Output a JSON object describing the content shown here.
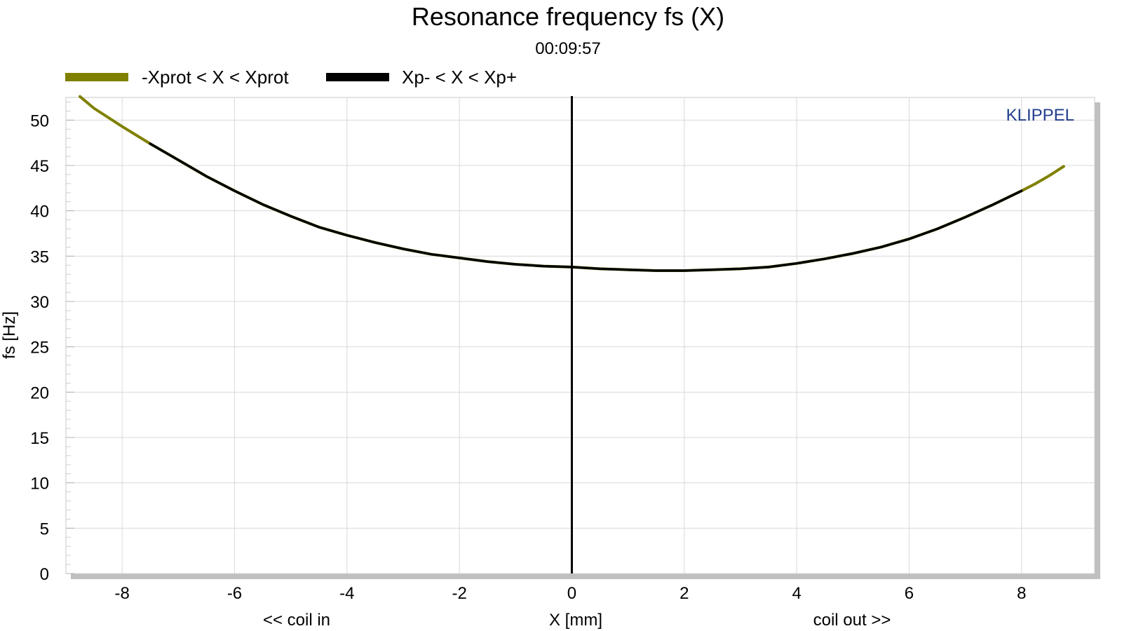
{
  "chart_data": {
    "type": "line",
    "title": "Resonance frequency fs (X)",
    "subtitle": "00:09:57",
    "xlabel": "X [mm]",
    "ylabel": "fs [Hz]",
    "xlabel_left": "<< coil in",
    "xlabel_right": "coil out >>",
    "brand": "KLIPPEL",
    "xlim": [
      -9,
      9.3
    ],
    "ylim": [
      0,
      52.5
    ],
    "xticks": [
      -8,
      -6,
      -4,
      -2,
      0,
      2,
      4,
      6,
      8
    ],
    "yticks": [
      0,
      5,
      10,
      15,
      20,
      25,
      30,
      35,
      40,
      45,
      50
    ],
    "grid": true,
    "legend_position": "top-left",
    "vertical_marker_x": 0,
    "series": [
      {
        "name": "-Xprot < X < Xprot",
        "color": "#808000",
        "x": [
          -8.75,
          -8.5,
          -8.0,
          -7.5,
          -7.0,
          -6.5,
          -6.0,
          -5.5,
          -5.0,
          -4.5,
          -4.0,
          -3.5,
          -3.0,
          -2.5,
          -2.0,
          -1.5,
          -1.0,
          -0.5,
          0.0,
          0.5,
          1.0,
          1.5,
          2.0,
          2.5,
          3.0,
          3.5,
          4.0,
          4.5,
          5.0,
          5.5,
          6.0,
          6.5,
          7.0,
          7.5,
          8.0,
          8.25,
          8.5,
          8.75
        ],
        "y": [
          52.6,
          51.3,
          49.3,
          47.4,
          45.6,
          43.8,
          42.2,
          40.7,
          39.4,
          38.2,
          37.3,
          36.5,
          35.8,
          35.2,
          34.8,
          34.4,
          34.1,
          33.9,
          33.8,
          33.6,
          33.5,
          33.4,
          33.4,
          33.5,
          33.6,
          33.8,
          34.2,
          34.7,
          35.3,
          36.0,
          36.9,
          38.0,
          39.3,
          40.7,
          42.2,
          43.0,
          43.9,
          44.9
        ]
      },
      {
        "name": "Xp- < X < Xp+",
        "color": "#000000",
        "x": [
          -7.5,
          -7.0,
          -6.5,
          -6.0,
          -5.5,
          -5.0,
          -4.5,
          -4.0,
          -3.5,
          -3.0,
          -2.5,
          -2.0,
          -1.5,
          -1.0,
          -0.5,
          0.0,
          0.5,
          1.0,
          1.5,
          2.0,
          2.5,
          3.0,
          3.5,
          4.0,
          4.5,
          5.0,
          5.5,
          6.0,
          6.5,
          7.0,
          7.5,
          8.0
        ],
        "y": [
          47.4,
          45.6,
          43.8,
          42.2,
          40.7,
          39.4,
          38.2,
          37.3,
          36.5,
          35.8,
          35.2,
          34.8,
          34.4,
          34.1,
          33.9,
          33.8,
          33.6,
          33.5,
          33.4,
          33.4,
          33.5,
          33.6,
          33.8,
          34.2,
          34.7,
          35.3,
          36.0,
          36.9,
          38.0,
          39.3,
          40.7,
          42.2
        ]
      }
    ]
  }
}
